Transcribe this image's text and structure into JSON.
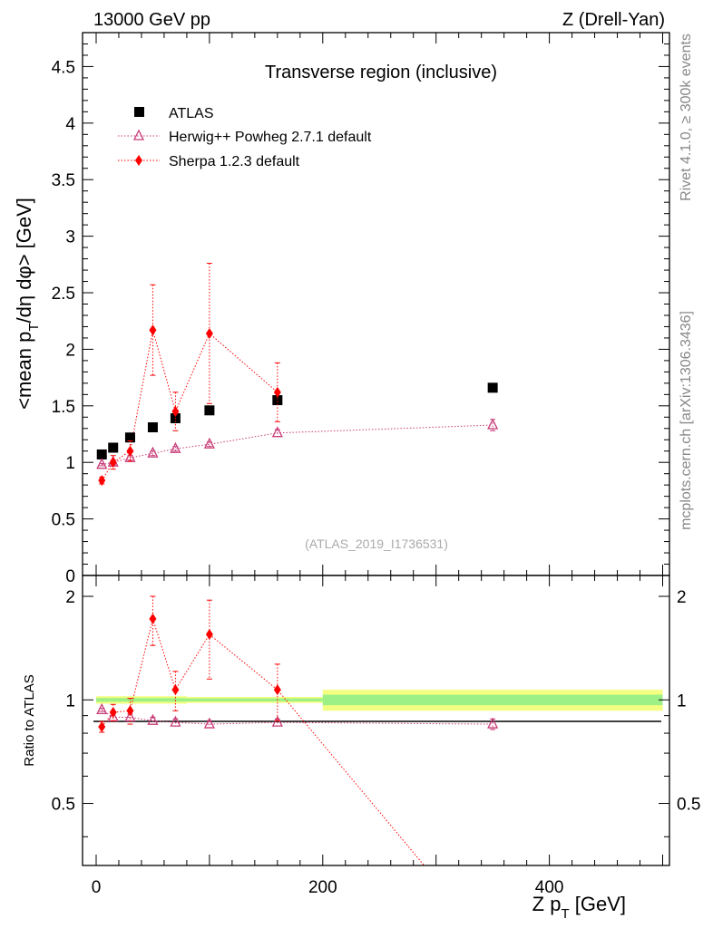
{
  "header": {
    "left": "13000 GeV pp",
    "right": "Z (Drell-Yan)"
  },
  "side_labels": {
    "rivet": "Rivet 4.1.0, ≥ 300k events",
    "mcplots": "mcplots.cern.ch [arXiv:1306.3436]"
  },
  "chart_data": [
    {
      "type": "scatter",
      "panel": "main",
      "title": "Transverse region (inclusive)",
      "watermark": "(ATLAS_2019_I1736531)",
      "ylabel": "<mean p_T/dη dφ> [GeV]",
      "ylim": [
        0,
        4.8
      ],
      "yticks": [
        "0",
        "0.5",
        "1",
        "1.5",
        "2",
        "2.5",
        "3",
        "3.5",
        "4",
        "4.5"
      ],
      "xlim": [
        -12,
        506
      ],
      "legend": {
        "position": "top-left",
        "entries": [
          "ATLAS",
          "Herwig++ Powheg 2.7.1 default",
          "Sherpa 1.2.3 default"
        ]
      },
      "series": [
        {
          "name": "ATLAS",
          "color": "#000000",
          "marker": "square",
          "x": [
            5,
            15,
            30,
            50,
            70,
            100,
            160,
            350
          ],
          "y": [
            1.07,
            1.13,
            1.22,
            1.31,
            1.39,
            1.46,
            1.55,
            1.66
          ]
        },
        {
          "name": "Herwig++ Powheg 2.7.1 default",
          "color": "#c83c78",
          "marker": "open-triangle",
          "line": "dotted",
          "x": [
            5,
            15,
            30,
            50,
            70,
            100,
            160,
            350
          ],
          "y": [
            0.98,
            1.0,
            1.04,
            1.08,
            1.12,
            1.16,
            1.26,
            1.33
          ],
          "err": [
            0.01,
            0.02,
            0.02,
            0.02,
            0.02,
            0.02,
            0.03,
            0.05
          ]
        },
        {
          "name": "Sherpa 1.2.3 default",
          "color": "#ff0000",
          "marker": "diamond",
          "line": "dotted",
          "x": [
            5,
            15,
            30,
            50,
            70,
            100,
            160
          ],
          "y": [
            0.84,
            1.0,
            1.1,
            2.17,
            1.45,
            2.14,
            1.62
          ],
          "err": [
            0.03,
            0.06,
            0.09,
            0.4,
            0.17,
            0.62,
            0.26
          ]
        }
      ]
    },
    {
      "type": "scatter",
      "panel": "ratio",
      "ylabel": "Ratio to ATLAS",
      "xlabel": "Z p_T [GeV]",
      "ylim": [
        0.33,
        2.3
      ],
      "yticks": [
        "0.5",
        "1",
        "2"
      ],
      "xlim": [
        -12,
        506
      ],
      "xticks": [
        "0",
        "200",
        "400"
      ],
      "uncertainty_band": {
        "segments": [
          {
            "x0": 0,
            "x1": 80,
            "inner": 0.012,
            "outer": 0.025
          },
          {
            "x0": 80,
            "x1": 200,
            "inner": 0.01,
            "outer": 0.02
          },
          {
            "x0": 200,
            "x1": 500,
            "inner": 0.035,
            "outer": 0.07
          }
        ]
      },
      "series": [
        {
          "name": "Herwig++ Powheg 2.7.1 default",
          "color": "#c83c78",
          "marker": "open-triangle",
          "x": [
            5,
            15,
            30,
            50,
            70,
            100,
            160,
            350
          ],
          "y": [
            0.935,
            0.89,
            0.89,
            0.87,
            0.86,
            0.85,
            0.86,
            0.85
          ],
          "err": [
            0.01,
            0.02,
            0.02,
            0.02,
            0.02,
            0.02,
            0.02,
            0.03
          ]
        },
        {
          "name": "Sherpa 1.2.3 default",
          "color": "#ff0000",
          "marker": "diamond",
          "x": [
            5,
            15,
            30,
            50,
            70,
            100,
            160
          ],
          "y": [
            0.835,
            0.92,
            0.93,
            1.72,
            1.07,
            1.55,
            1.07
          ],
          "err": [
            0.03,
            0.05,
            0.08,
            0.28,
            0.14,
            0.4,
            0.2
          ],
          "line_tail": {
            "x": 300,
            "y": 0.3
          }
        }
      ]
    }
  ]
}
